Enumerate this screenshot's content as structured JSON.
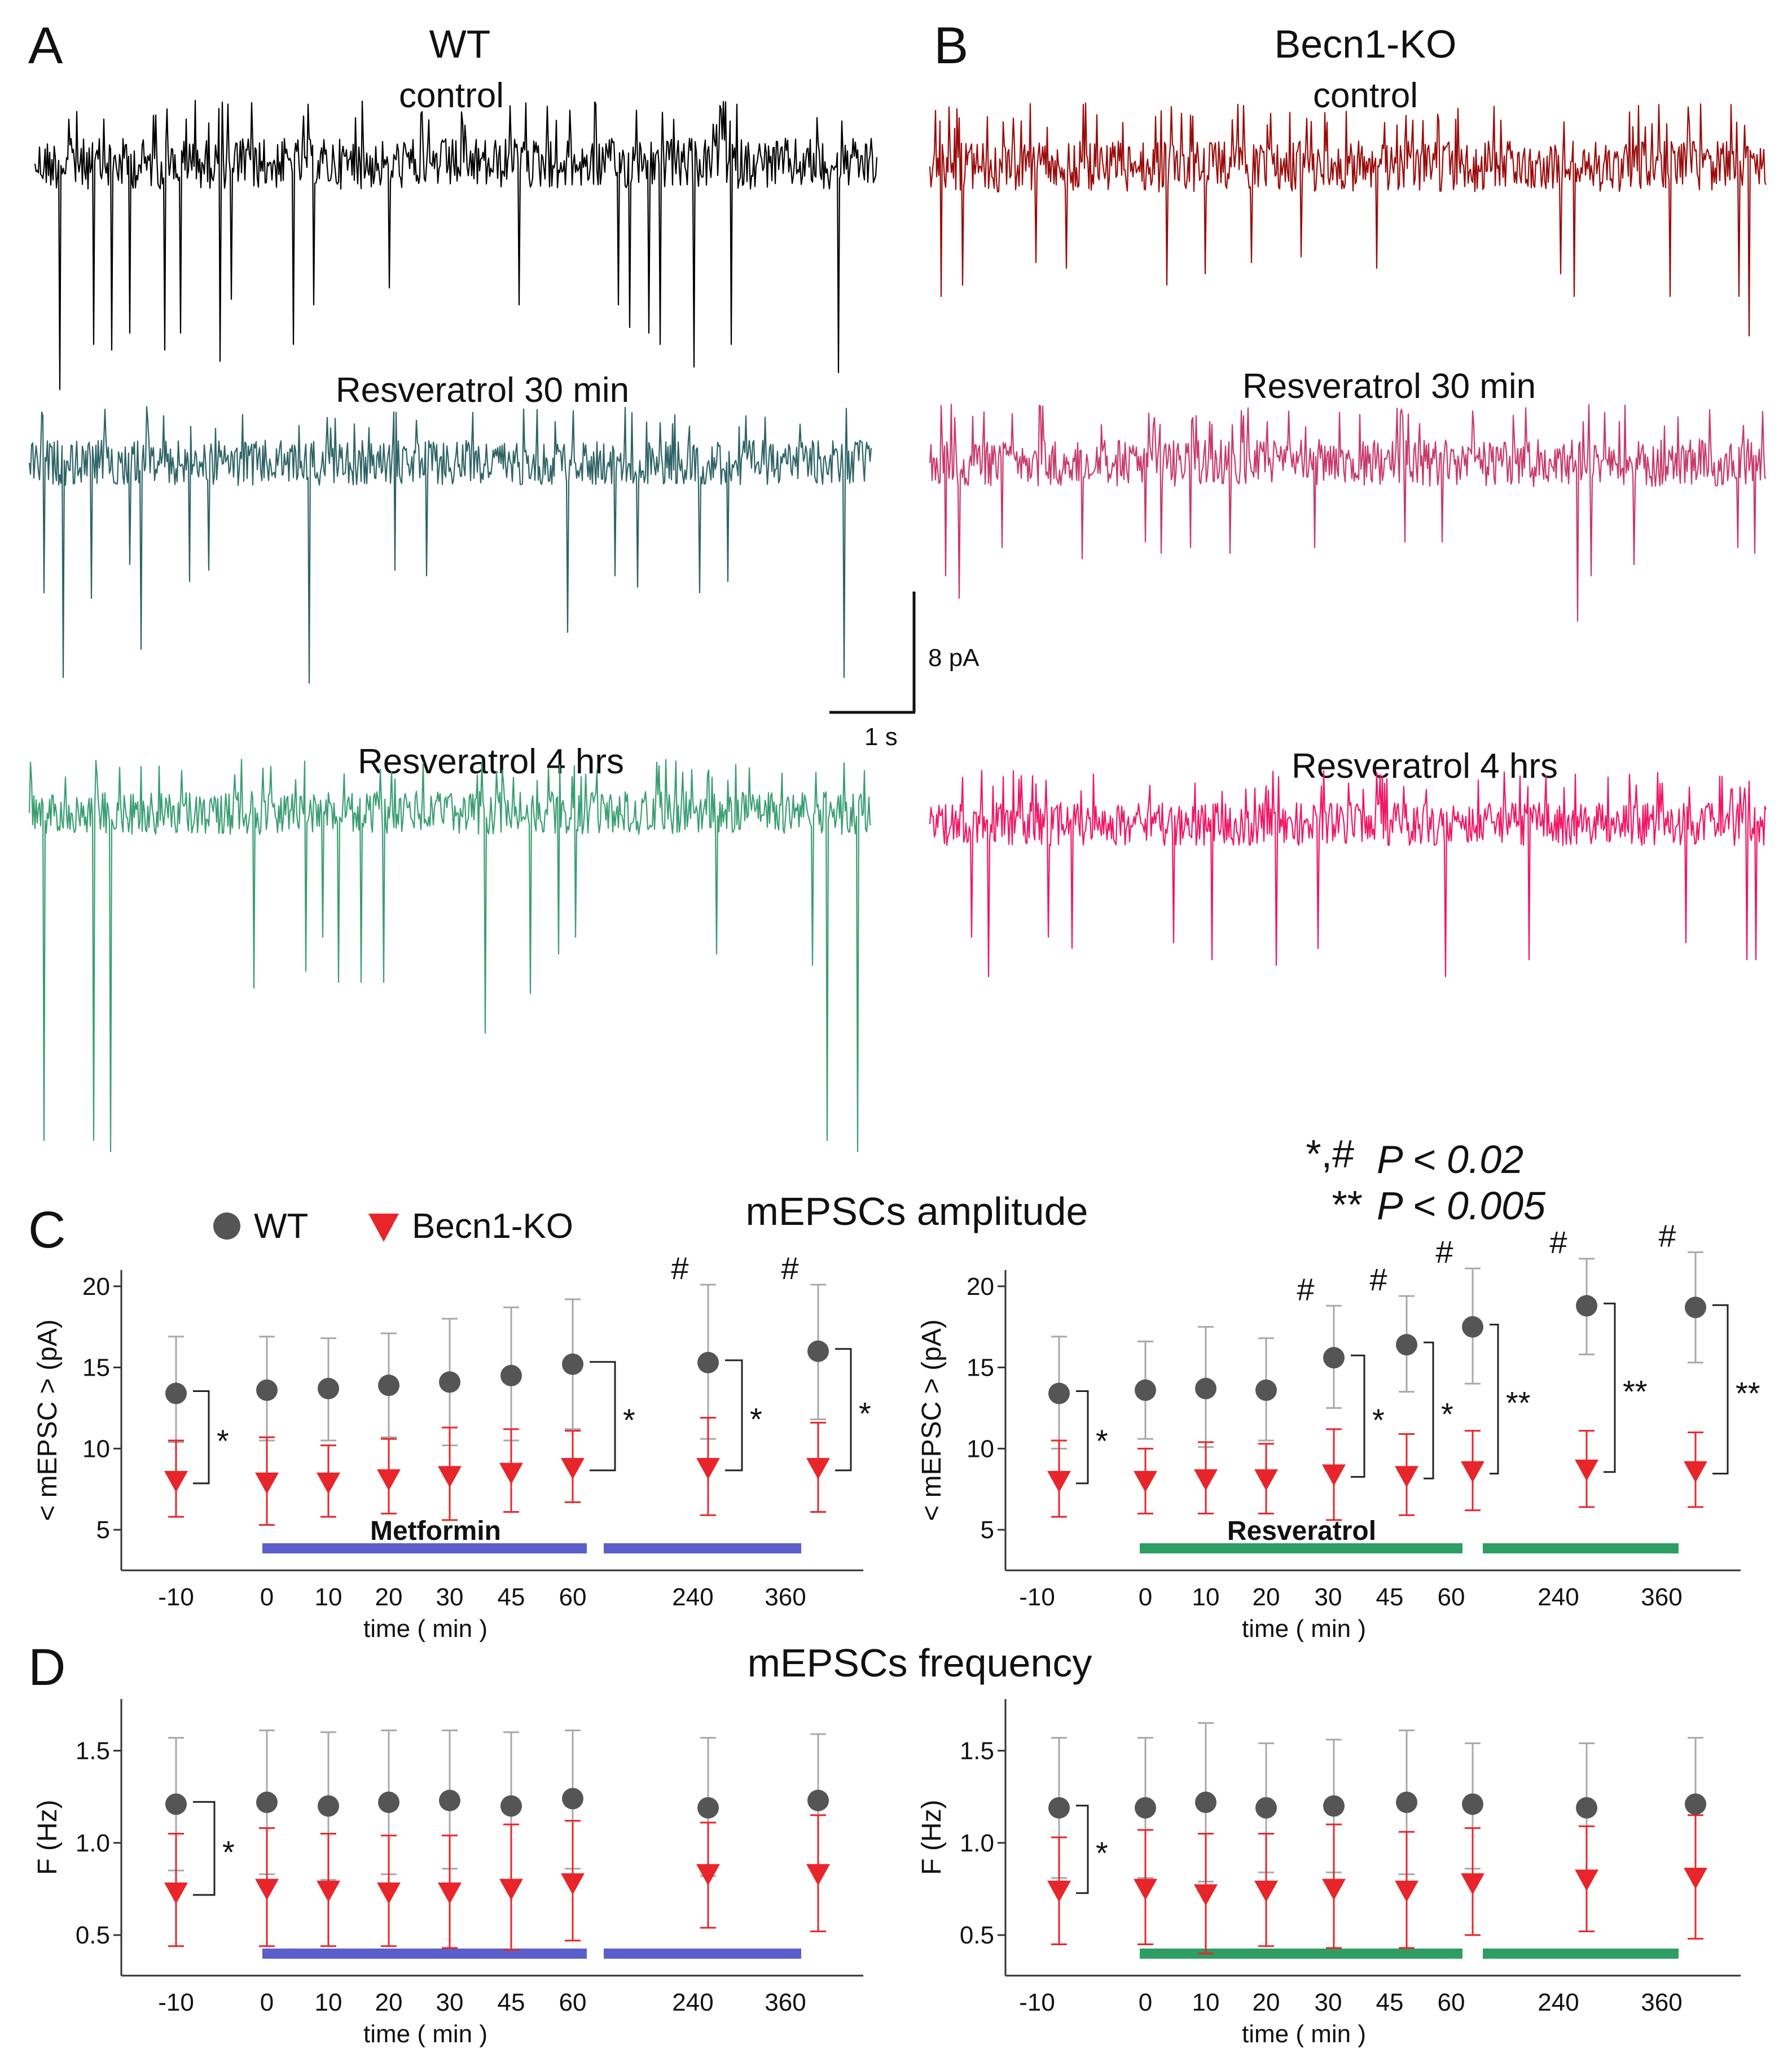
{
  "panels": {
    "A": "A",
    "B": "B",
    "C": "C",
    "D": "D"
  },
  "traces": {
    "wt_title": "WT",
    "ko_title": "Becn1-KO",
    "conditions": [
      "control",
      "Resveratrol 30 min",
      "Resveratrol 4 hrs"
    ],
    "wt_colors": [
      "#000000",
      "#2e6366",
      "#3a9e72"
    ],
    "ko_colors": [
      "#9a0b0b",
      "#c8396a",
      "#f01666"
    ],
    "scale_y": "8 pA",
    "scale_x": "1 s"
  },
  "legend": {
    "wt": "WT",
    "ko": "Becn1-KO",
    "wt_color": "#555555",
    "ko_color": "#e8252a"
  },
  "significance": {
    "line1_sym": "*,#",
    "line1_text": "P < 0.02",
    "line2_sym": "**",
    "line2_text": "P < 0.005"
  },
  "titles": {
    "amplitude": "mEPSCs amplitude",
    "frequency": "mEPSCs frequency"
  },
  "axes": {
    "amp_ylabel": "< mEPSC > (pA)",
    "freq_ylabel": "F (Hz)",
    "xlabel": "time ( min )",
    "amp_yticks": [
      "5",
      "10",
      "15",
      "20"
    ],
    "freq_yticks": [
      "0.5",
      "1.0",
      "1.5"
    ],
    "xticks": [
      "-10",
      "0",
      "10",
      "20",
      "30",
      "45",
      "60",
      "240",
      "360"
    ]
  },
  "drugs": {
    "metformin": "Metformin",
    "resveratrol": "Resveratrol",
    "metformin_color": "#5b5fcc",
    "resveratrol_color": "#2e9e62"
  },
  "chart_data": [
    {
      "type": "scatter",
      "title": "mEPSCs amplitude",
      "treatment": "Metformin",
      "xlabel": "time ( min )",
      "ylabel": "< mEPSC > (pA)",
      "ylim": [
        2.5,
        21
      ],
      "categories": [
        "-10",
        "0",
        "10",
        "20",
        "30",
        "45",
        "60",
        "240",
        "360"
      ],
      "series": [
        {
          "name": "WT",
          "values": [
            13.4,
            13.6,
            13.7,
            13.9,
            14.1,
            14.5,
            15.2,
            15.3,
            16.0
          ],
          "err_hi": [
            16.9,
            16.9,
            16.8,
            17.1,
            18.0,
            18.7,
            19.2,
            20.1,
            20.1
          ],
          "err_lo": [
            10.4,
            10.5,
            10.5,
            10.7,
            10.2,
            10.5,
            11.2,
            10.6,
            11.8
          ]
        },
        {
          "name": "Becn1-KO",
          "values": [
            8.0,
            7.9,
            7.9,
            8.1,
            8.3,
            8.5,
            8.8,
            8.8,
            8.8
          ],
          "err_hi": [
            10.5,
            10.7,
            10.2,
            10.6,
            11.3,
            11.2,
            11.1,
            11.9,
            11.6
          ],
          "err_lo": [
            5.8,
            5.3,
            5.8,
            6.0,
            5.6,
            6.1,
            6.7,
            5.9,
            6.1
          ]
        }
      ],
      "annotations": {
        "stars": [
          "*",
          "*",
          "*",
          "*"
        ],
        "hashes": [
          "#",
          "#"
        ]
      }
    },
    {
      "type": "scatter",
      "title": "mEPSCs amplitude",
      "treatment": "Resveratrol",
      "xlabel": "time ( min )",
      "ylabel": "< mEPSC > (pA)",
      "ylim": [
        2.5,
        21
      ],
      "categories": [
        "-10",
        "0",
        "10",
        "20",
        "30",
        "45",
        "60",
        "240",
        "360"
      ],
      "series": [
        {
          "name": "WT",
          "values": [
            13.4,
            13.6,
            13.7,
            13.6,
            15.6,
            16.4,
            17.5,
            18.8,
            18.7
          ],
          "err_hi": [
            16.9,
            16.6,
            17.5,
            16.8,
            18.8,
            19.4,
            21.1,
            21.7,
            22.1
          ],
          "err_lo": [
            10.0,
            10.6,
            10.1,
            10.5,
            12.5,
            13.5,
            14.0,
            15.8,
            15.3
          ]
        },
        {
          "name": "Becn1-KO",
          "values": [
            8.0,
            8.0,
            8.1,
            8.1,
            8.4,
            8.3,
            8.6,
            8.7,
            8.6
          ],
          "err_hi": [
            10.5,
            10.0,
            10.4,
            10.3,
            11.2,
            10.9,
            11.1,
            11.1,
            11.0
          ],
          "err_lo": [
            5.8,
            6.0,
            6.0,
            6.0,
            5.6,
            5.9,
            6.2,
            6.4,
            6.4
          ]
        }
      ],
      "annotations": {
        "stars": [
          "*",
          "*",
          "*",
          "**",
          "**",
          "**"
        ],
        "hashes": [
          "#",
          "#",
          "#",
          "#"
        ]
      }
    },
    {
      "type": "scatter",
      "title": "mEPSCs frequency",
      "treatment": "Metformin",
      "xlabel": "time ( min )",
      "ylabel": "F (Hz)",
      "ylim": [
        0.28,
        1.78
      ],
      "categories": [
        "-10",
        "0",
        "10",
        "20",
        "30",
        "45",
        "60",
        "240",
        "360"
      ],
      "series": [
        {
          "name": "WT",
          "values": [
            1.21,
            1.22,
            1.2,
            1.22,
            1.23,
            1.2,
            1.24,
            1.19,
            1.23
          ],
          "err_hi": [
            1.57,
            1.61,
            1.6,
            1.61,
            1.61,
            1.6,
            1.61,
            1.57,
            1.59
          ],
          "err_lo": [
            0.85,
            0.83,
            0.8,
            0.83,
            0.86,
            0.8,
            0.86,
            0.82,
            0.87
          ]
        },
        {
          "name": "Becn1-KO",
          "values": [
            0.73,
            0.75,
            0.74,
            0.73,
            0.73,
            0.75,
            0.78,
            0.83,
            0.83
          ],
          "err_hi": [
            1.05,
            1.08,
            1.05,
            1.04,
            1.04,
            1.1,
            1.12,
            1.11,
            1.15
          ],
          "err_lo": [
            0.44,
            0.44,
            0.44,
            0.44,
            0.43,
            0.42,
            0.47,
            0.54,
            0.52
          ]
        }
      ],
      "annotations": {
        "stars": [
          "*"
        ]
      }
    },
    {
      "type": "scatter",
      "title": "mEPSCs frequency",
      "treatment": "Resveratrol",
      "xlabel": "time ( min )",
      "ylabel": "F (Hz)",
      "ylim": [
        0.28,
        1.78
      ],
      "categories": [
        "-10",
        "0",
        "10",
        "20",
        "30",
        "45",
        "60",
        "240",
        "360"
      ],
      "series": [
        {
          "name": "WT",
          "values": [
            1.19,
            1.19,
            1.22,
            1.19,
            1.2,
            1.22,
            1.21,
            1.19,
            1.21
          ],
          "err_hi": [
            1.57,
            1.57,
            1.65,
            1.54,
            1.56,
            1.61,
            1.54,
            1.54,
            1.57
          ],
          "err_lo": [
            0.81,
            0.81,
            0.79,
            0.84,
            0.84,
            0.83,
            0.86,
            0.84,
            0.86
          ]
        },
        {
          "name": "Becn1-KO",
          "values": [
            0.74,
            0.75,
            0.72,
            0.74,
            0.75,
            0.74,
            0.78,
            0.8,
            0.81
          ],
          "err_hi": [
            1.03,
            1.07,
            1.05,
            1.05,
            1.1,
            1.06,
            1.08,
            1.09,
            1.15
          ],
          "err_lo": [
            0.45,
            0.45,
            0.4,
            0.44,
            0.43,
            0.43,
            0.5,
            0.52,
            0.48
          ]
        }
      ],
      "annotations": {
        "stars": [
          "*"
        ]
      }
    }
  ]
}
